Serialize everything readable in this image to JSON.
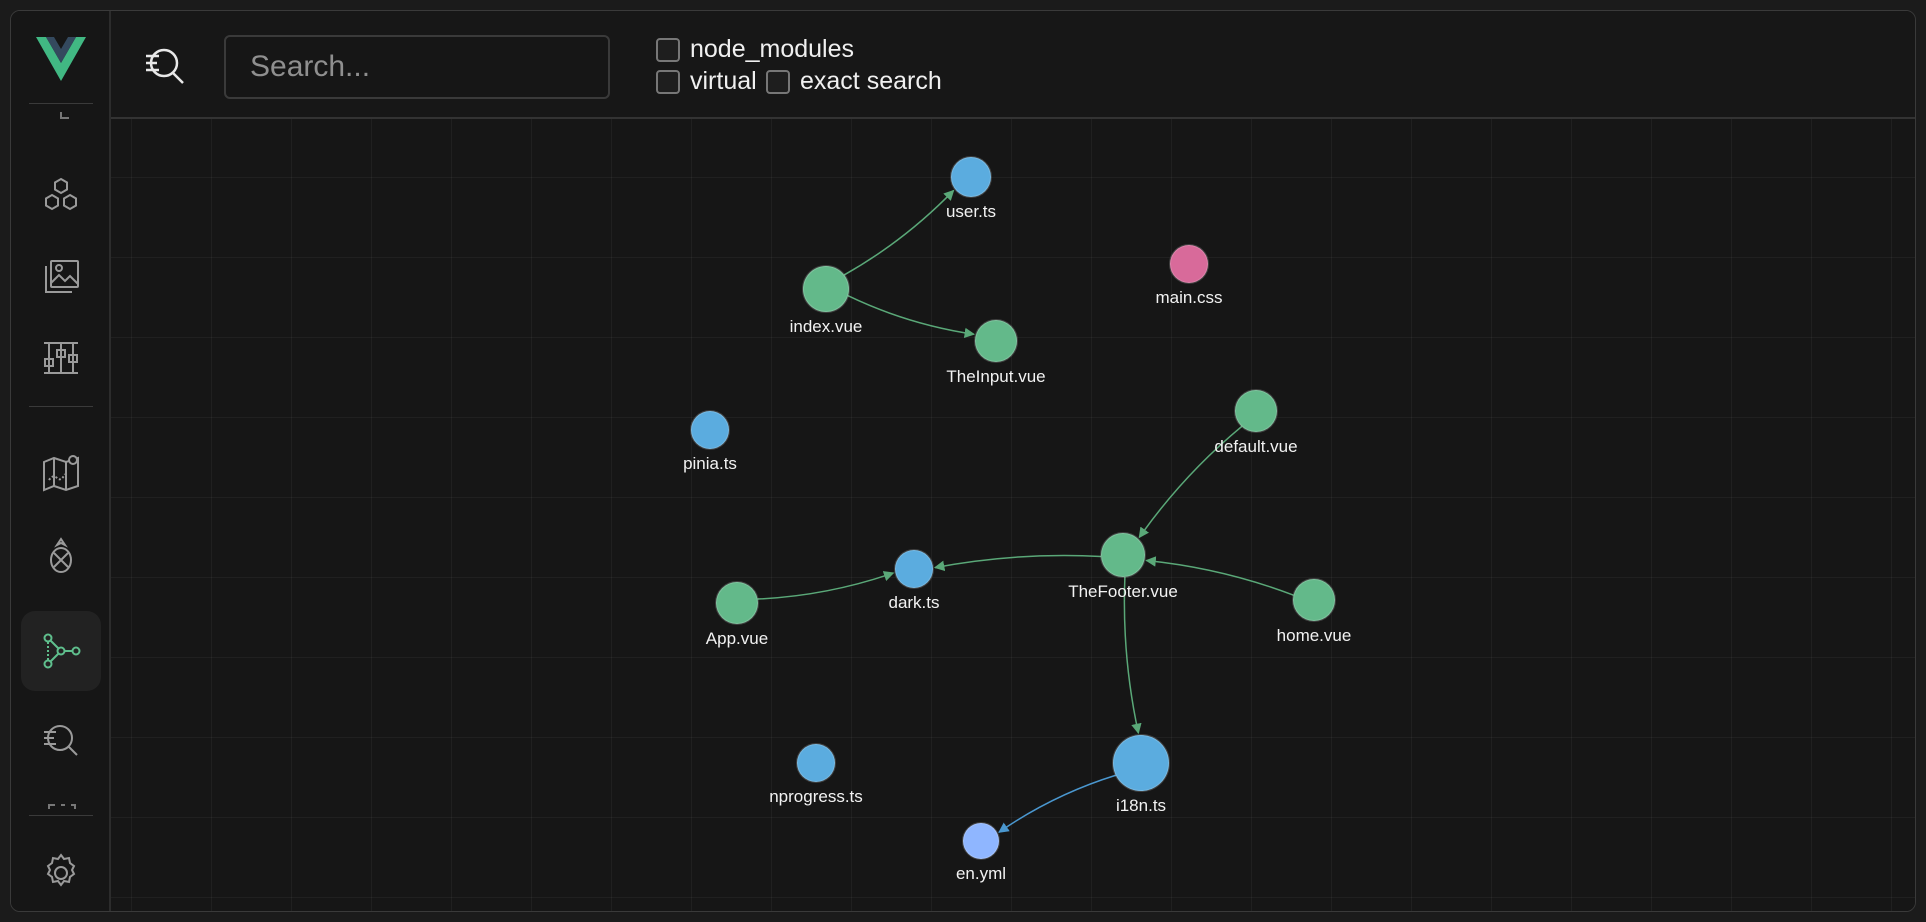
{
  "header": {
    "search_placeholder": "Search...",
    "checkboxes": [
      {
        "label": "node_modules",
        "checked": false
      },
      {
        "label": "virtual",
        "checked": false
      },
      {
        "label": "exact search",
        "checked": false
      }
    ]
  },
  "sidebar": {
    "items": [
      {
        "icon": "hexagons-icon"
      },
      {
        "icon": "images-icon"
      },
      {
        "icon": "dashboard-icon"
      },
      {
        "icon": "map-icon"
      },
      {
        "icon": "pineapple-icon"
      },
      {
        "icon": "graph-icon",
        "active": true
      },
      {
        "icon": "search-list-icon"
      },
      {
        "icon": "gear-icon"
      }
    ]
  },
  "colors": {
    "vue": "#63b98a",
    "ts": "#5bacdf",
    "css": "#d86a9a",
    "yml": "#8fb6ff",
    "edge_green": "#5aa878",
    "edge_blue": "#4a97cf"
  },
  "graph": {
    "nodes": [
      {
        "id": "user.ts",
        "label": "user.ts",
        "type": "ts"
      },
      {
        "id": "main.css",
        "label": "main.css",
        "type": "css"
      },
      {
        "id": "index.vue",
        "label": "index.vue",
        "type": "vue"
      },
      {
        "id": "TheInput.vue",
        "label": "TheInput.vue",
        "type": "vue"
      },
      {
        "id": "pinia.ts",
        "label": "pinia.ts",
        "type": "ts"
      },
      {
        "id": "default.vue",
        "label": "default.vue",
        "type": "vue"
      },
      {
        "id": "dark.ts",
        "label": "dark.ts",
        "type": "ts"
      },
      {
        "id": "TheFooter.vue",
        "label": "TheFooter.vue",
        "type": "vue"
      },
      {
        "id": "App.vue",
        "label": "App.vue",
        "type": "vue"
      },
      {
        "id": "home.vue",
        "label": "home.vue",
        "type": "vue"
      },
      {
        "id": "nprogress.ts",
        "label": "nprogress.ts",
        "type": "ts"
      },
      {
        "id": "i18n.ts",
        "label": "i18n.ts",
        "type": "ts"
      },
      {
        "id": "en.yml",
        "label": "en.yml",
        "type": "yml"
      }
    ],
    "edges": [
      {
        "from": "index.vue",
        "to": "user.ts"
      },
      {
        "from": "index.vue",
        "to": "TheInput.vue"
      },
      {
        "from": "default.vue",
        "to": "TheFooter.vue"
      },
      {
        "from": "TheFooter.vue",
        "to": "dark.ts"
      },
      {
        "from": "App.vue",
        "to": "dark.ts"
      },
      {
        "from": "home.vue",
        "to": "TheFooter.vue"
      },
      {
        "from": "TheFooter.vue",
        "to": "i18n.ts"
      },
      {
        "from": "i18n.ts",
        "to": "en.yml"
      }
    ]
  }
}
